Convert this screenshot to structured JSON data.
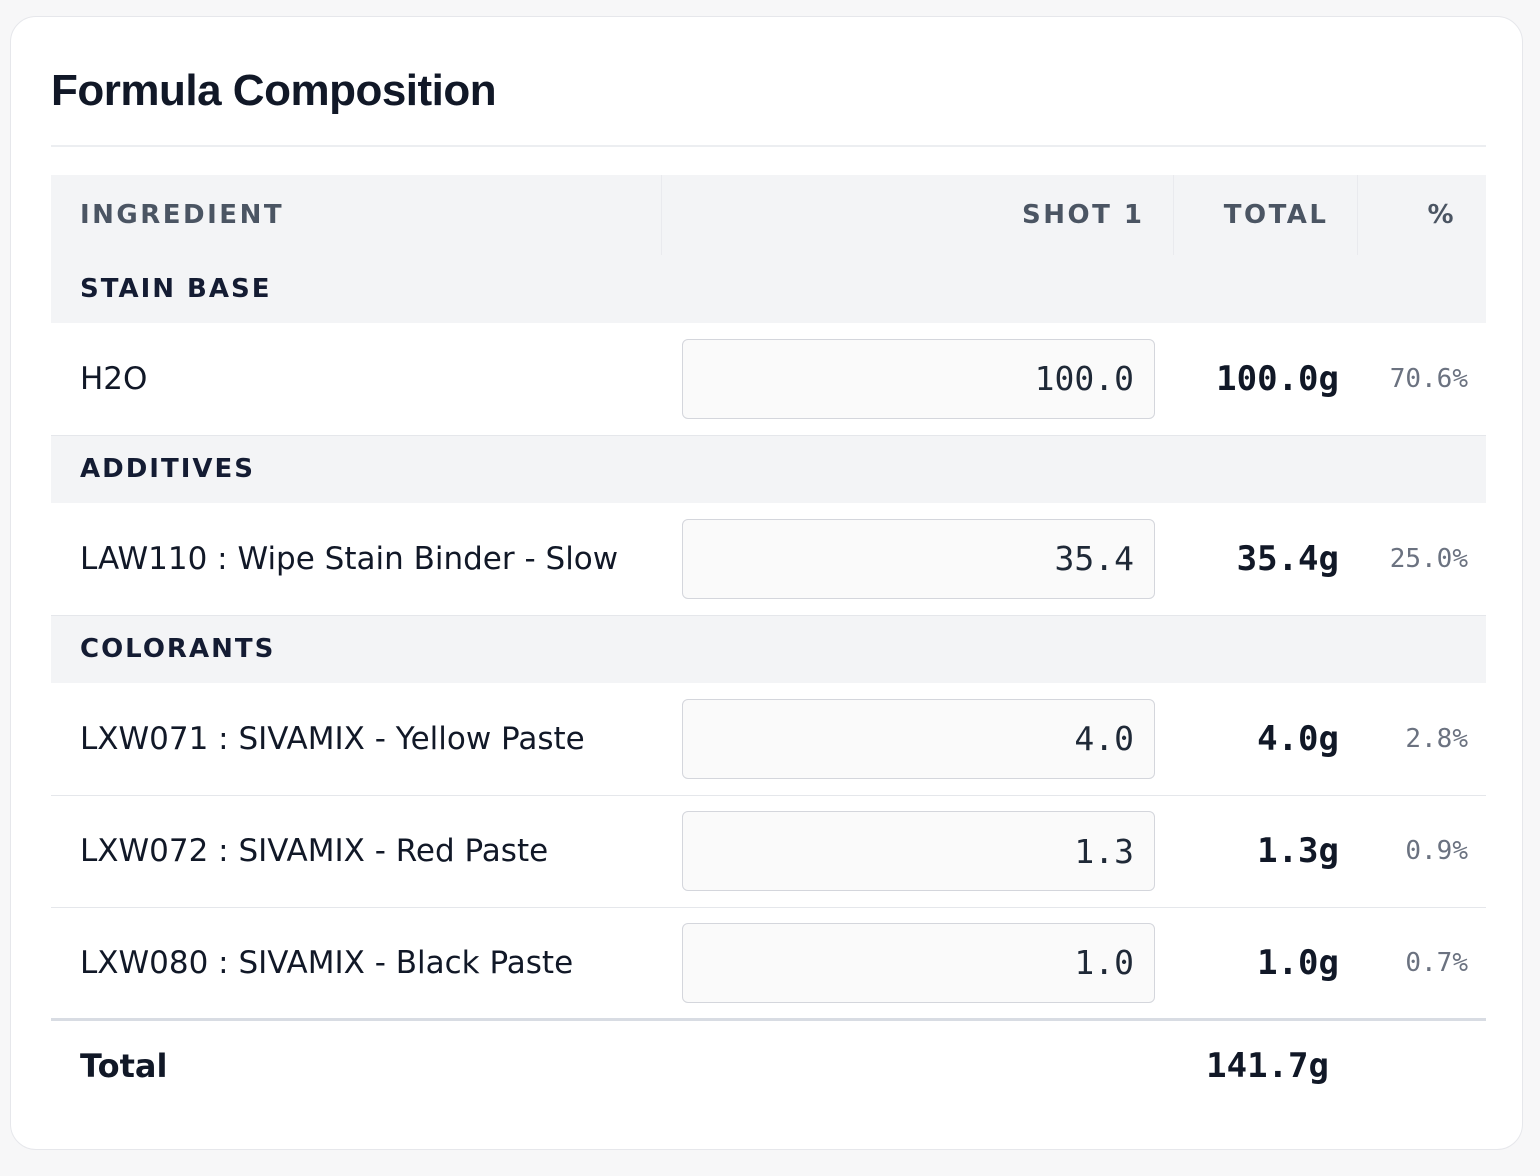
{
  "card": {
    "title": "Formula Composition"
  },
  "table": {
    "headers": {
      "ingredient": "INGREDIENT",
      "shot": "SHOT 1",
      "total": "TOTAL",
      "percent": "%"
    },
    "groups": [
      {
        "label": "STAIN BASE",
        "items": [
          {
            "name": "H2O",
            "shot": "100.0",
            "total": "100.0g",
            "percent": "70.6%"
          }
        ]
      },
      {
        "label": "ADDITIVES",
        "items": [
          {
            "name": "LAW110 : Wipe Stain Binder - Slow",
            "shot": "35.4",
            "total": "35.4g",
            "percent": "25.0%"
          }
        ]
      },
      {
        "label": "COLORANTS",
        "items": [
          {
            "name": "LXW071 : SIVAMIX - Yellow Paste",
            "shot": "4.0",
            "total": "4.0g",
            "percent": "2.8%"
          },
          {
            "name": "LXW072 : SIVAMIX - Red Paste",
            "shot": "1.3",
            "total": "1.3g",
            "percent": "0.9%"
          },
          {
            "name": "LXW080 : SIVAMIX - Black Paste",
            "shot": "1.0",
            "total": "1.0g",
            "percent": "0.7%"
          }
        ]
      }
    ],
    "footer": {
      "label": "Total",
      "total": "141.7g"
    }
  }
}
